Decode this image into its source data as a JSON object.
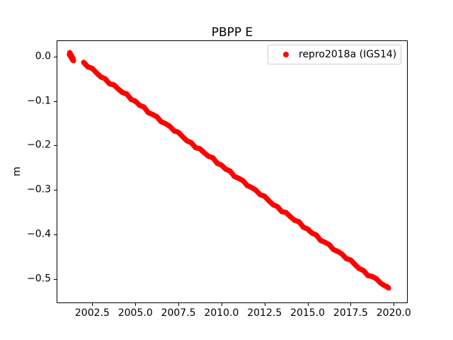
{
  "figure": {
    "title": "PBPP E"
  },
  "legend": {
    "label": "repro2018a (IGS14)",
    "marker": "dot-icon",
    "marker_color": "#ff0000",
    "border_color": "#cccccc",
    "position": "upper right"
  },
  "chart_data": {
    "type": "scatter",
    "title": "PBPP E",
    "xlabel": "",
    "ylabel": "m",
    "grid": false,
    "legend_position": "upper right",
    "xlim": [
      2000.47,
      2020.77
    ],
    "ylim": [
      -0.553,
      0.035
    ],
    "xticks": [
      2002.5,
      2005.0,
      2007.5,
      2010.0,
      2012.5,
      2015.0,
      2017.5,
      2020.0
    ],
    "xtick_labels": [
      "2002.5",
      "2005.0",
      "2007.5",
      "2010.0",
      "2012.5",
      "2015.0",
      "2017.5",
      "2020.0"
    ],
    "yticks": [
      0.0,
      -0.1,
      -0.2,
      -0.3,
      -0.4,
      -0.5
    ],
    "ytick_labels": [
      "0.0",
      "−0.1",
      "−0.2",
      "−0.3",
      "−0.4",
      "−0.5"
    ],
    "series": [
      {
        "name": "repro2018a (IGS14)",
        "color": "#ff0000",
        "marker": "point",
        "marker_radius_px": 3.7,
        "cluster_points": [
          [
            2001.17,
            0.005
          ],
          [
            2001.19,
            0.009
          ],
          [
            2001.21,
            0.002
          ],
          [
            2001.23,
            0.007
          ],
          [
            2001.25,
            0.0
          ],
          [
            2001.27,
            0.004
          ],
          [
            2001.29,
            -0.003
          ],
          [
            2001.31,
            0.001
          ],
          [
            2001.33,
            -0.006
          ],
          [
            2001.35,
            -0.002
          ],
          [
            2001.37,
            -0.008
          ],
          [
            2001.39,
            -0.005
          ],
          [
            2001.41,
            -0.009
          ]
        ],
        "points": [
          [
            2002.0,
            -0.013
          ],
          [
            2002.25,
            -0.0232
          ],
          [
            2002.5,
            -0.0264
          ],
          [
            2002.75,
            -0.0366
          ],
          [
            2003.0,
            -0.0457
          ],
          [
            2003.25,
            -0.0499
          ],
          [
            2003.5,
            -0.0611
          ],
          [
            2003.75,
            -0.0633
          ],
          [
            2004.0,
            -0.0725
          ],
          [
            2004.25,
            -0.0807
          ],
          [
            2004.5,
            -0.0839
          ],
          [
            2004.75,
            -0.0961
          ],
          [
            2005.0,
            -0.1002
          ],
          [
            2005.25,
            -0.1094
          ],
          [
            2005.5,
            -0.1136
          ],
          [
            2005.75,
            -0.1258
          ],
          [
            2006.0,
            -0.13
          ],
          [
            2006.25,
            -0.1352
          ],
          [
            2006.5,
            -0.1464
          ],
          [
            2006.75,
            -0.1506
          ],
          [
            2007.0,
            -0.1567
          ],
          [
            2007.25,
            -0.1669
          ],
          [
            2007.5,
            -0.1701
          ],
          [
            2007.75,
            -0.1803
          ],
          [
            2008.0,
            -0.1895
          ],
          [
            2008.25,
            -0.1937
          ],
          [
            2008.5,
            -0.2049
          ],
          [
            2008.75,
            -0.2071
          ],
          [
            2009.0,
            -0.2162
          ],
          [
            2009.25,
            -0.2244
          ],
          [
            2009.5,
            -0.2276
          ],
          [
            2009.75,
            -0.2398
          ],
          [
            2010.0,
            -0.244
          ],
          [
            2010.25,
            -0.2532
          ],
          [
            2010.5,
            -0.2574
          ],
          [
            2010.75,
            -0.2696
          ],
          [
            2011.0,
            -0.2737
          ],
          [
            2011.25,
            -0.2789
          ],
          [
            2011.5,
            -0.2901
          ],
          [
            2011.75,
            -0.2943
          ],
          [
            2012.0,
            -0.3005
          ],
          [
            2012.25,
            -0.3107
          ],
          [
            2012.5,
            -0.3139
          ],
          [
            2012.75,
            -0.3241
          ],
          [
            2013.0,
            -0.3332
          ],
          [
            2013.25,
            -0.3374
          ],
          [
            2013.5,
            -0.3486
          ],
          [
            2013.75,
            -0.3508
          ],
          [
            2014.0,
            -0.36
          ],
          [
            2014.25,
            -0.3682
          ],
          [
            2014.5,
            -0.3714
          ],
          [
            2014.75,
            -0.3836
          ],
          [
            2015.0,
            -0.3877
          ],
          [
            2015.25,
            -0.3969
          ],
          [
            2015.5,
            -0.4011
          ],
          [
            2015.75,
            -0.4133
          ],
          [
            2016.0,
            -0.4175
          ],
          [
            2016.25,
            -0.4227
          ],
          [
            2016.5,
            -0.4339
          ],
          [
            2016.75,
            -0.4381
          ],
          [
            2017.0,
            -0.4442
          ],
          [
            2017.25,
            -0.4544
          ],
          [
            2017.5,
            -0.4576
          ],
          [
            2017.75,
            -0.4678
          ],
          [
            2018.0,
            -0.477
          ],
          [
            2018.25,
            -0.4812
          ],
          [
            2018.5,
            -0.4924
          ],
          [
            2018.75,
            -0.4946
          ],
          [
            2019.0,
            -0.5
          ],
          [
            2019.25,
            -0.5096
          ],
          [
            2019.5,
            -0.516
          ],
          [
            2019.6,
            -0.5171
          ],
          [
            2019.7,
            -0.5205
          ]
        ]
      }
    ]
  }
}
